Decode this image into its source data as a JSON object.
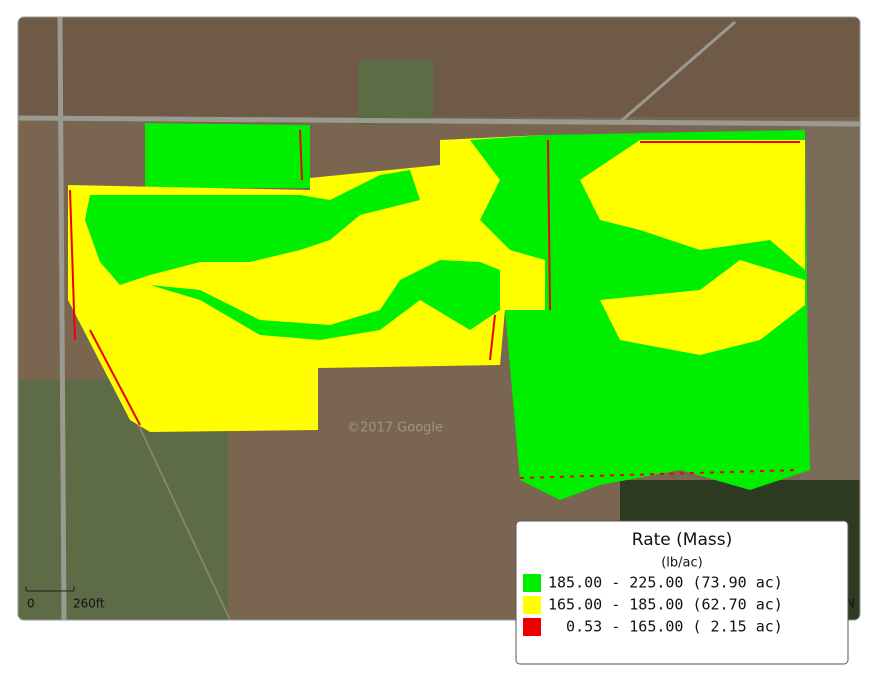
{
  "map": {
    "watermark": "©2017 Google",
    "north_label": "N",
    "scale_bar": {
      "start_label": "0",
      "end_label": "260ft"
    },
    "legend": {
      "title": "Rate (Mass)",
      "unit": "(lb/ac)",
      "entries": [
        {
          "label": "185.00 - 225.00 (73.90 ac)",
          "color": "#00ee00"
        },
        {
          "label": "165.00 - 185.00 (62.70 ac)",
          "color": "#ffff00"
        },
        {
          "label": "  0.53 - 165.00 ( 2.15 ac)",
          "color": "#ee0000"
        }
      ]
    }
  }
}
